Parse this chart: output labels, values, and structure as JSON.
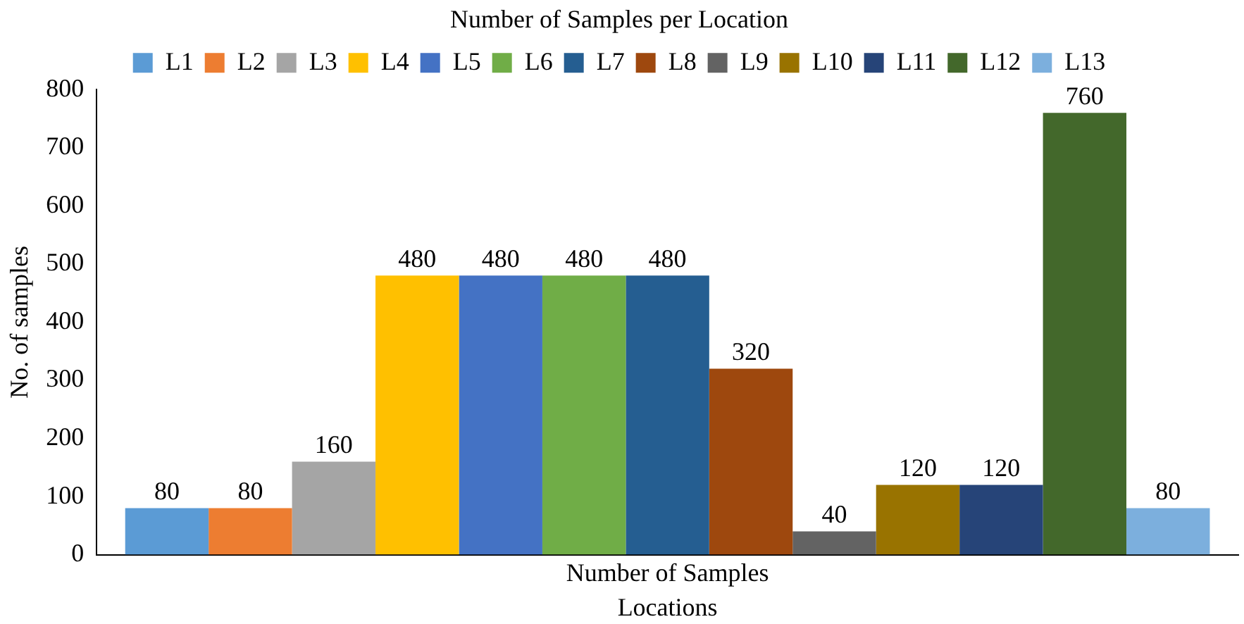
{
  "chart_data": {
    "type": "bar",
    "title": "Number of Samples per Location",
    "xlabel": "Locations",
    "ylabel": "No. of samples",
    "categories": [
      "Number of Samples"
    ],
    "series": [
      {
        "name": "L1",
        "color": "#5b9bd5",
        "values": [
          80
        ]
      },
      {
        "name": "L2",
        "color": "#ed7d31",
        "values": [
          80
        ]
      },
      {
        "name": "L3",
        "color": "#a5a5a5",
        "values": [
          160
        ]
      },
      {
        "name": "L4",
        "color": "#ffc000",
        "values": [
          480
        ]
      },
      {
        "name": "L5",
        "color": "#4472c4",
        "values": [
          480
        ]
      },
      {
        "name": "L6",
        "color": "#70ad47",
        "values": [
          480
        ]
      },
      {
        "name": "L7",
        "color": "#255e91",
        "values": [
          480
        ]
      },
      {
        "name": "L8",
        "color": "#9e480e",
        "values": [
          320
        ]
      },
      {
        "name": "L9",
        "color": "#636363",
        "values": [
          40
        ]
      },
      {
        "name": "L10",
        "color": "#997300",
        "values": [
          120
        ]
      },
      {
        "name": "L11",
        "color": "#264478",
        "values": [
          120
        ]
      },
      {
        "name": "L12",
        "color": "#43682b",
        "values": [
          760
        ]
      },
      {
        "name": "L13",
        "color": "#7cafdd",
        "values": [
          80
        ]
      }
    ],
    "ylim": [
      0,
      800
    ],
    "yticks": [
      0,
      100,
      200,
      300,
      400,
      500,
      600,
      700,
      800
    ],
    "grid": false,
    "legend": "top",
    "data_labels": true
  }
}
